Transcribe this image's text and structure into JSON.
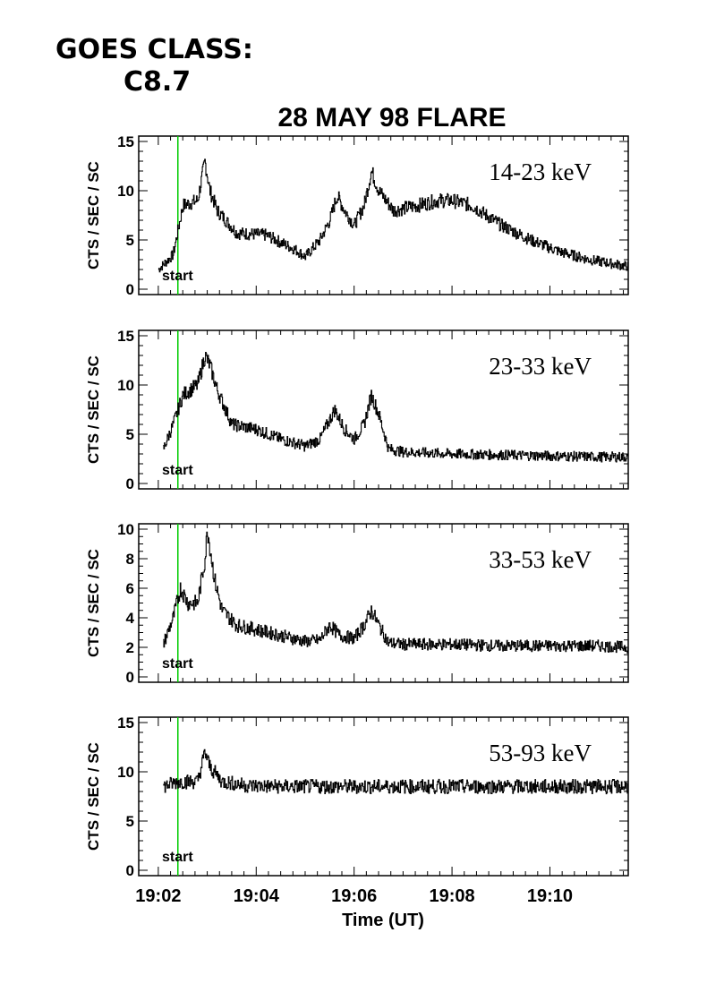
{
  "goes": {
    "label": "GOES CLASS:",
    "value": "C8.7"
  },
  "chart_data": {
    "type": "line",
    "title": "28 MAY 98 FLARE",
    "xlabel": "Time (UT)",
    "ylabel": "CTS / SEC / SC",
    "x_unit": "minutes after 19:00 UT",
    "xlim": [
      1.6,
      11.6
    ],
    "x_ticks": [
      2,
      4,
      6,
      8,
      10
    ],
    "x_tick_labels": [
      "19:02",
      "19:04",
      "19:06",
      "19:08",
      "19:10"
    ],
    "start_marker": {
      "x": 2.4,
      "label": "start",
      "color": "#00cc00"
    },
    "line_color": "#000000",
    "panels": [
      {
        "band": "14-23 keV",
        "ylim": [
          0,
          15
        ],
        "y_ticks": [
          0,
          5,
          10,
          15
        ],
        "series": {
          "x": [
            2.0,
            2.3,
            2.5,
            2.8,
            2.95,
            3.05,
            3.2,
            3.6,
            4.2,
            4.8,
            5.0,
            5.3,
            5.5,
            5.65,
            5.8,
            6.0,
            6.2,
            6.35,
            6.5,
            6.8,
            7.3,
            7.7,
            8.0,
            8.4,
            9.0,
            9.6,
            10.2,
            10.8,
            11.6
          ],
          "y": [
            2.0,
            3.5,
            8.5,
            9.0,
            13.0,
            10.0,
            8.0,
            5.7,
            5.5,
            4.0,
            3.3,
            5.0,
            7.0,
            9.5,
            8.0,
            6.5,
            8.5,
            12.0,
            10.0,
            8.0,
            8.5,
            9.0,
            9.0,
            8.5,
            6.5,
            5.0,
            3.8,
            3.0,
            2.3
          ]
        }
      },
      {
        "band": "23-33 keV",
        "ylim": [
          0,
          15
        ],
        "y_ticks": [
          0,
          5,
          10,
          15
        ],
        "series": {
          "x": [
            2.1,
            2.3,
            2.5,
            2.8,
            2.95,
            3.05,
            3.2,
            3.5,
            4.0,
            4.5,
            5.0,
            5.3,
            5.5,
            5.6,
            5.8,
            6.0,
            6.2,
            6.35,
            6.5,
            6.7,
            7.0,
            8.0,
            9.0,
            10.0,
            11.0,
            11.6
          ],
          "y": [
            3.5,
            6.0,
            9.0,
            10.0,
            13.0,
            12.0,
            9.5,
            6.0,
            5.5,
            4.5,
            3.8,
            4.5,
            6.5,
            7.5,
            5.5,
            4.5,
            6.0,
            9.0,
            7.0,
            3.5,
            3.2,
            3.0,
            2.9,
            2.8,
            2.7,
            2.7
          ]
        }
      },
      {
        "band": "33-53 keV",
        "ylim": [
          0,
          10
        ],
        "y_ticks": [
          0,
          2,
          4,
          6,
          8,
          10
        ],
        "series": {
          "x": [
            2.1,
            2.3,
            2.45,
            2.6,
            2.8,
            2.95,
            3.0,
            3.15,
            3.3,
            3.6,
            4.0,
            4.5,
            5.0,
            5.3,
            5.5,
            5.7,
            6.0,
            6.2,
            6.35,
            6.5,
            6.7,
            7.0,
            8.0,
            9.0,
            10.0,
            11.0,
            11.6
          ],
          "y": [
            2.2,
            4.0,
            6.0,
            5.0,
            5.0,
            8.0,
            10.0,
            6.5,
            4.5,
            3.5,
            3.2,
            2.8,
            2.4,
            2.5,
            3.5,
            2.8,
            2.6,
            3.5,
            4.5,
            3.5,
            2.3,
            2.2,
            2.2,
            2.1,
            2.1,
            2.1,
            2.0
          ]
        }
      },
      {
        "band": "53-93 keV",
        "ylim": [
          0,
          15
        ],
        "y_ticks": [
          0,
          5,
          10,
          15
        ],
        "series": {
          "x": [
            2.1,
            2.4,
            2.8,
            2.95,
            3.05,
            3.3,
            3.8,
            4.5,
            5.5,
            6.5,
            7.5,
            8.5,
            9.5,
            10.5,
            11.6
          ],
          "y": [
            8.5,
            9.0,
            9.0,
            12.0,
            10.5,
            9.0,
            8.6,
            8.5,
            8.5,
            8.5,
            8.5,
            8.5,
            8.5,
            8.5,
            8.5
          ]
        }
      }
    ]
  }
}
